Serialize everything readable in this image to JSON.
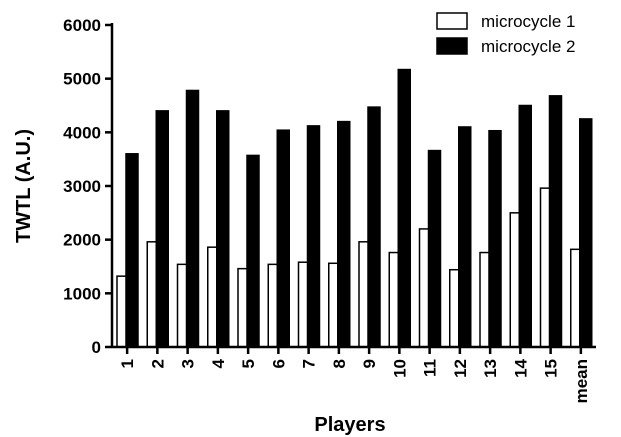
{
  "chart_data": {
    "type": "bar",
    "title": "",
    "xlabel": "Players",
    "ylabel": "TWTL (A.U.)",
    "ylim": [
      0,
      6000
    ],
    "yticks": [
      "0",
      "1000",
      "2000",
      "3000",
      "4000",
      "5000",
      "6000"
    ],
    "grid": false,
    "legend_position": "top-right",
    "categories": [
      "1",
      "2",
      "3",
      "4",
      "5",
      "6",
      "7",
      "8",
      "9",
      "10",
      "11",
      "12",
      "13",
      "14",
      "15",
      "mean"
    ],
    "series": [
      {
        "name": "microcycle 1",
        "fill": "#ffffff",
        "stroke": "#000000",
        "values": [
          1320,
          1960,
          1540,
          1860,
          1460,
          1540,
          1580,
          1560,
          1960,
          1760,
          2200,
          1440,
          1760,
          2500,
          2960,
          1820
        ]
      },
      {
        "name": "microcycle 2",
        "fill": "#000000",
        "stroke": "#000000",
        "values": [
          3600,
          4400,
          4780,
          4400,
          3570,
          4040,
          4120,
          4200,
          4470,
          5170,
          3660,
          4100,
          4030,
          4500,
          4680,
          4250
        ]
      }
    ]
  }
}
